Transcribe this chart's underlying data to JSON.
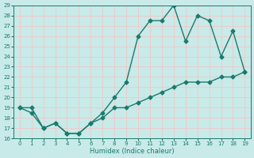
{
  "xlabel": "Humidex (Indice chaleur)",
  "x": [
    0,
    1,
    2,
    3,
    4,
    5,
    6,
    7,
    8,
    9,
    10,
    11,
    12,
    13,
    14,
    15,
    16,
    17,
    18,
    19
  ],
  "line1": [
    19,
    19,
    17,
    17.5,
    16.5,
    16.5,
    17.5,
    18.5,
    20,
    21.5,
    26,
    27.5,
    27.5,
    29,
    25.5,
    28,
    27.5,
    24,
    26.5,
    22.5
  ],
  "line2": [
    19,
    18.5,
    17,
    17.5,
    16.5,
    16.5,
    17.5,
    18,
    19,
    19,
    19.5,
    20,
    20.5,
    21,
    21.5,
    21.5,
    21.5,
    22,
    22,
    22.5
  ],
  "color": "#1a7a6e",
  "bg_color": "#c8eae8",
  "grid_color": "#f0c8c8",
  "ylim": [
    16,
    29
  ],
  "xlim_min": -0.5,
  "xlim_max": 19.5,
  "yticks": [
    16,
    17,
    18,
    19,
    20,
    21,
    22,
    23,
    24,
    25,
    26,
    27,
    28,
    29
  ],
  "xticks": [
    0,
    1,
    2,
    3,
    4,
    5,
    6,
    7,
    8,
    9,
    10,
    11,
    12,
    13,
    14,
    15,
    16,
    17,
    18,
    19
  ],
  "marker": "D",
  "markersize": 2.5,
  "linewidth": 1.0
}
